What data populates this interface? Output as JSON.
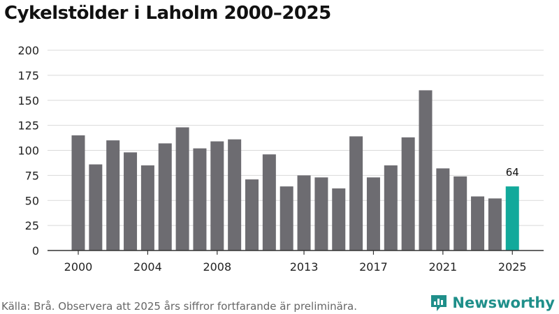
{
  "colors": {
    "bar": "#6d6c71",
    "highlight": "#12a99b",
    "grid": "#d9d9d9",
    "axis": "#333333",
    "brand": "#1f8f8a"
  },
  "footer": {
    "source": "Källa: Brå. Observera att 2025 års siffror fortfarande är preliminära.",
    "brand": "Newsworthy"
  },
  "chart_data": {
    "type": "bar",
    "title": "Cykelstölder i Laholm 2000–2025",
    "xlabel": "",
    "ylabel": "",
    "ylim": [
      0,
      200
    ],
    "yticks": [
      0,
      25,
      50,
      75,
      100,
      125,
      150,
      175,
      200
    ],
    "xticks": [
      2000,
      2004,
      2008,
      2013,
      2017,
      2021,
      2025
    ],
    "categories": [
      2000,
      2001,
      2002,
      2003,
      2004,
      2005,
      2006,
      2007,
      2008,
      2009,
      2010,
      2011,
      2012,
      2013,
      2014,
      2015,
      2016,
      2017,
      2018,
      2019,
      2020,
      2021,
      2022,
      2023,
      2024,
      2025
    ],
    "values": [
      115,
      86,
      110,
      98,
      85,
      107,
      123,
      102,
      109,
      111,
      71,
      96,
      64,
      75,
      73,
      62,
      114,
      73,
      85,
      113,
      160,
      82,
      74,
      54,
      52,
      64
    ],
    "highlight_category": 2025,
    "data_labels": [
      {
        "category": 2025,
        "text": "64"
      }
    ],
    "grid": true
  }
}
